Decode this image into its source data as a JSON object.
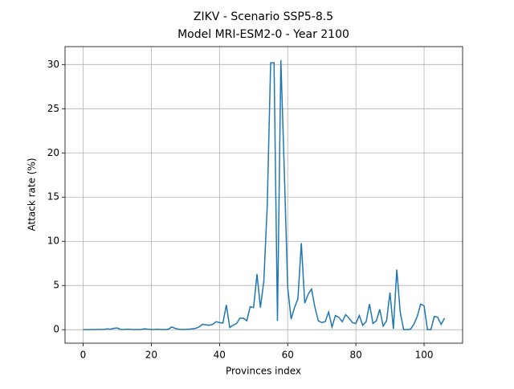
{
  "chart_data": {
    "type": "line",
    "title": "ZIKV - Scenario SSP5-8.5",
    "subtitle": "Model MRI-ESM2-0 - Year 2100",
    "x_label": "Provinces index",
    "y_label": "Attack rate (%)",
    "x": [
      0,
      1,
      2,
      3,
      4,
      5,
      6,
      7,
      8,
      9,
      10,
      11,
      12,
      13,
      14,
      15,
      16,
      17,
      18,
      19,
      20,
      21,
      22,
      23,
      24,
      25,
      26,
      27,
      28,
      29,
      30,
      31,
      32,
      33,
      34,
      35,
      36,
      37,
      38,
      39,
      40,
      41,
      42,
      43,
      44,
      45,
      46,
      47,
      48,
      49,
      50,
      51,
      52,
      53,
      54,
      55,
      56,
      57,
      58,
      59,
      60,
      61,
      62,
      63,
      64,
      65,
      66,
      67,
      68,
      69,
      70,
      71,
      72,
      73,
      74,
      75,
      76,
      77,
      78,
      79,
      80,
      81,
      82,
      83,
      84,
      85,
      86,
      87,
      88,
      89,
      90,
      91,
      92,
      93,
      94,
      95,
      96,
      97,
      98,
      99,
      100,
      101,
      102,
      103,
      104,
      105,
      106
    ],
    "series": [
      {
        "name": "ZIKV",
        "color": "#1f77b4",
        "values": [
          0,
          0,
          0,
          0.02,
          0.02,
          0.03,
          0.02,
          0.1,
          0.05,
          0.15,
          0.2,
          0.03,
          0.02,
          0.05,
          0.03,
          0.02,
          0.02,
          0.03,
          0.1,
          0.05,
          0.02,
          0.03,
          0.05,
          0.02,
          0.02,
          0.05,
          0.3,
          0.15,
          0.05,
          0.02,
          0.03,
          0.05,
          0.1,
          0.15,
          0.3,
          0.6,
          0.55,
          0.5,
          0.6,
          0.9,
          0.8,
          0.75,
          2.8,
          0.25,
          0.5,
          0.7,
          1.3,
          1.3,
          1.0,
          2.6,
          2.5,
          6.3,
          2.5,
          5.5,
          14,
          30.2,
          30.2,
          1.0,
          30.5,
          18,
          4.8,
          1.2,
          2.5,
          3.5,
          9.8,
          3.0,
          4.0,
          4.6,
          2.5,
          1.0,
          0.8,
          0.9,
          2.0,
          0.3,
          1.6,
          1.4,
          0.9,
          1.7,
          1.3,
          0.8,
          0.7,
          1.6,
          0.5,
          0.9,
          2.9,
          0.7,
          1.0,
          2.3,
          0.4,
          1.0,
          4.2,
          0.1,
          6.8,
          2.0,
          0,
          0,
          0.05,
          0.6,
          1.5,
          2.9,
          2.7,
          0,
          0,
          1.5,
          1.4,
          0.6,
          1.3
        ]
      }
    ],
    "xlim": [
      -5.3,
      111.3
    ],
    "xticks": [
      0,
      20,
      40,
      60,
      80,
      100
    ],
    "ylim": [
      -1.53,
      32.03
    ],
    "yticks": [
      0,
      5,
      10,
      15,
      20,
      25,
      30
    ],
    "grid": true
  }
}
